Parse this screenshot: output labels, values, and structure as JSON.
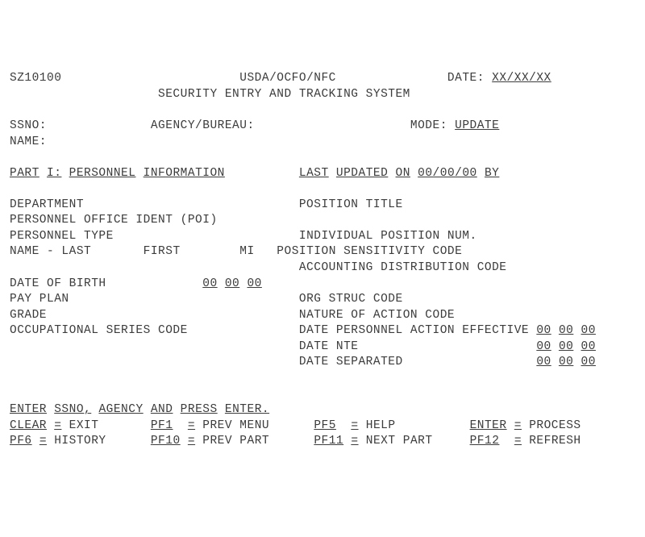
{
  "header": {
    "screen_id": "SZ10100",
    "org": "USDA/OCFO/NFC",
    "date_label": "DATE:",
    "date_value": "XX/XX/XX",
    "title": "SECURITY ENTRY AND TRACKING SYSTEM"
  },
  "fields": {
    "ssno_label": "SSNO:",
    "agency_label": "AGENCY/BUREAU:",
    "mode_label": "MODE:",
    "mode_value": "UPDATE",
    "name_label": "NAME:"
  },
  "section": {
    "part_prefix": "PART",
    "part_num": "I:",
    "part_name_a": "PERSONNEL",
    "part_name_b": "INFORMATION",
    "lu_a": "LAST",
    "lu_b": "UPDATED",
    "lu_c": "ON",
    "lu_date": "00/00/00",
    "lu_by": "BY"
  },
  "left": {
    "department": "DEPARTMENT",
    "poi": "PERSONNEL OFFICE IDENT (POI)",
    "ptype": "PERSONNEL TYPE",
    "name_last": "NAME - LAST",
    "name_first": "FIRST",
    "name_mi": "MI",
    "dob": "DATE OF BIRTH",
    "dob_v1": "00",
    "dob_v2": "00",
    "dob_v3": "00",
    "pay_plan": "PAY PLAN",
    "grade": "GRADE",
    "occ": "OCCUPATIONAL SERIES CODE"
  },
  "right": {
    "pos_title": "POSITION TITLE",
    "ind_pos_num": "INDIVIDUAL POSITION NUM.",
    "pos_sens": "POSITION SENSITIVITY CODE",
    "acct_dist": "ACCOUNTING DISTRIBUTION CODE",
    "org_struc": "ORG STRUC CODE",
    "nature": "NATURE OF ACTION CODE",
    "dpae": "DATE PERSONNEL ACTION EFFECTIVE",
    "dnte": "DATE NTE",
    "dsep": "DATE SEPARATED",
    "d1": "00",
    "d2": "00",
    "d3": "00"
  },
  "prompt": {
    "a": "ENTER",
    "b": "SSNO,",
    "c": "AGENCY",
    "d": "AND",
    "e": "PRESS",
    "f": "ENTER."
  },
  "fkeys": {
    "clear": "CLEAR",
    "clear_t": "EXIT",
    "pf1": "PF1",
    "pf1_t": "PREV MENU",
    "pf5": "PF5",
    "pf5_t": "HELP",
    "enter": "ENTER",
    "enter_t": "PROCESS",
    "pf6": "PF6",
    "pf6_t": "HISTORY",
    "pf10": "PF10",
    "pf10_t": "PREV PART",
    "pf11": "PF11",
    "pf11_t": "NEXT PART",
    "pf12": "PF12",
    "pf12_t": "REFRESH",
    "eq": "="
  }
}
